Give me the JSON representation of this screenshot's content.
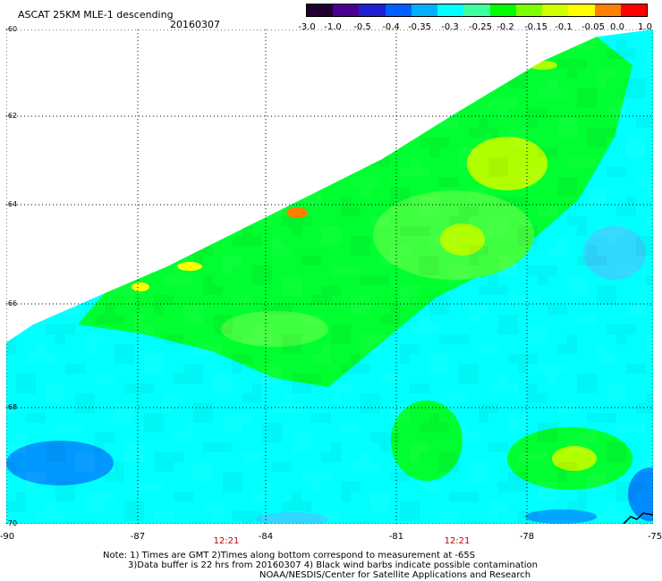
{
  "header": {
    "title": "ASCAT 25KM MLE-1 descending",
    "date": "20160307"
  },
  "colorbar": {
    "labels": [
      "-3.0",
      "-1.0",
      "-0.5",
      "-0.4",
      "-0.35",
      "-0.3",
      "-0.25",
      "-0.2",
      "-0.15",
      "-0.1",
      "-0.05",
      "0.0",
      "1.0"
    ],
    "colors": [
      "#200030",
      "#4a0090",
      "#2020d0",
      "#0060ff",
      "#00b0ff",
      "#00ffff",
      "#40ffa0",
      "#00ff00",
      "#80ff00",
      "#d0ff00",
      "#ffff00",
      "#ff8000",
      "#ff0000"
    ]
  },
  "map": {
    "lat_labels": [
      "-60",
      "-62",
      "-64",
      "-66",
      "-68",
      "-70"
    ],
    "lon_labels": [
      "-90",
      "-87",
      "-84",
      "-81",
      "-78",
      "-75"
    ],
    "time_labels": [
      "12:21",
      "12:21"
    ],
    "field_colors": {
      "cyan": "#00ffff",
      "lightblue": "#30d8ff",
      "blue": "#0080ff",
      "green": "#00ff30",
      "lightgreen": "#40ff40",
      "yellowgreen": "#b0ff00",
      "yellow": "#ffff00",
      "orange": "#ff8000"
    }
  },
  "notes": {
    "line1": "Note: 1) Times are GMT 2)Times along bottom correspond to measurement at -65S",
    "line2": "3)Data buffer is 22 hrs from 20160307 4) Black wind barbs indicate possible contamination",
    "line3": "NOAA/NESDIS/Center for Satellite Applications and Research"
  }
}
